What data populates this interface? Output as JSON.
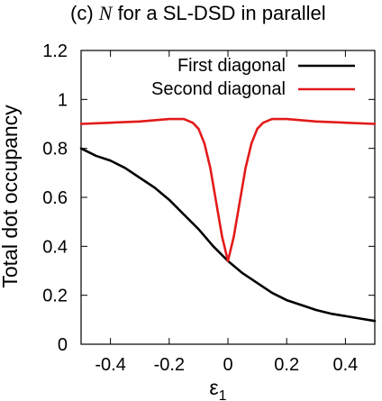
{
  "chart_data": {
    "type": "line",
    "title_prefix": "(c) ",
    "title_symbol": "N",
    "title_suffix": " for a SL-DSD in parallel",
    "xlabel_symbol": "ε",
    "xlabel_subscript": "1",
    "ylabel": "Total dot occupancy",
    "xlim": [
      -0.5,
      0.5
    ],
    "ylim": [
      0,
      1.2
    ],
    "xticks": [
      -0.4,
      -0.2,
      0,
      0.2,
      0.4
    ],
    "xtick_labels": [
      "-0.4",
      "-0.2",
      "0",
      "0.2",
      "0.4"
    ],
    "yticks": [
      0,
      0.2,
      0.4,
      0.6,
      0.8,
      1,
      1.2
    ],
    "ytick_labels": [
      "0",
      "0.2",
      "0.4",
      "0.6",
      "0.8",
      "1",
      "1.2"
    ],
    "grid": false,
    "legend_position": "top-right",
    "series": [
      {
        "name": "First diagonal",
        "color": "#000000",
        "x": [
          -0.5,
          -0.45,
          -0.4,
          -0.35,
          -0.3,
          -0.25,
          -0.2,
          -0.15,
          -0.1,
          -0.05,
          0,
          0.05,
          0.1,
          0.15,
          0.2,
          0.25,
          0.3,
          0.35,
          0.4,
          0.45,
          0.5
        ],
        "y": [
          0.8,
          0.77,
          0.75,
          0.72,
          0.68,
          0.64,
          0.59,
          0.53,
          0.47,
          0.4,
          0.34,
          0.29,
          0.25,
          0.21,
          0.18,
          0.16,
          0.14,
          0.125,
          0.115,
          0.105,
          0.095
        ]
      },
      {
        "name": "Second diagonal",
        "color": "#e41a1a",
        "x": [
          -0.5,
          -0.4,
          -0.3,
          -0.2,
          -0.15,
          -0.12,
          -0.1,
          -0.08,
          -0.06,
          -0.04,
          -0.02,
          0,
          0.02,
          0.04,
          0.06,
          0.08,
          0.1,
          0.12,
          0.15,
          0.2,
          0.3,
          0.4,
          0.5
        ],
        "y": [
          0.9,
          0.905,
          0.91,
          0.92,
          0.92,
          0.905,
          0.88,
          0.82,
          0.72,
          0.58,
          0.44,
          0.34,
          0.44,
          0.58,
          0.72,
          0.82,
          0.88,
          0.905,
          0.92,
          0.92,
          0.91,
          0.905,
          0.9
        ]
      }
    ]
  }
}
